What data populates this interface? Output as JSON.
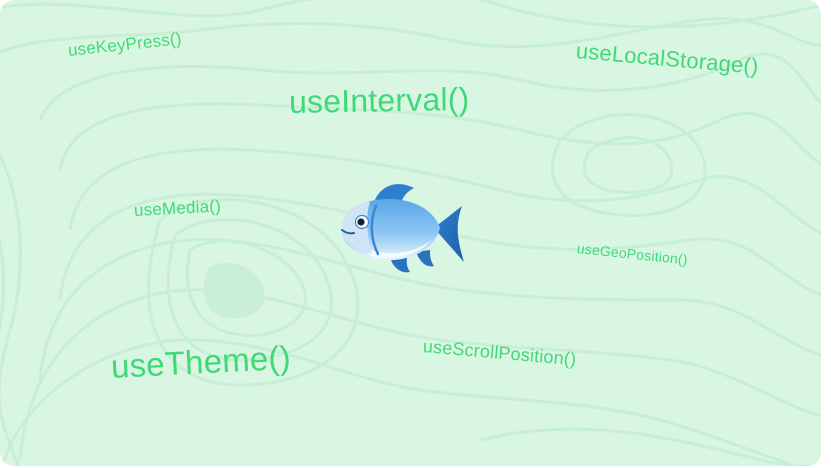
{
  "hooks": {
    "key_press": "useKeyPress()",
    "local_storage": "useLocalStorage()",
    "interval": "useInterval()",
    "media": "useMedia()",
    "geo_position": "useGeoPosition()",
    "scroll_position": "useScrollPosition()",
    "theme": "useTheme()"
  },
  "icons": {
    "center": "fish-icon"
  },
  "colors": {
    "background": "#d9f6e3",
    "text": "#3fd978",
    "contour": "#c7f0d6"
  }
}
